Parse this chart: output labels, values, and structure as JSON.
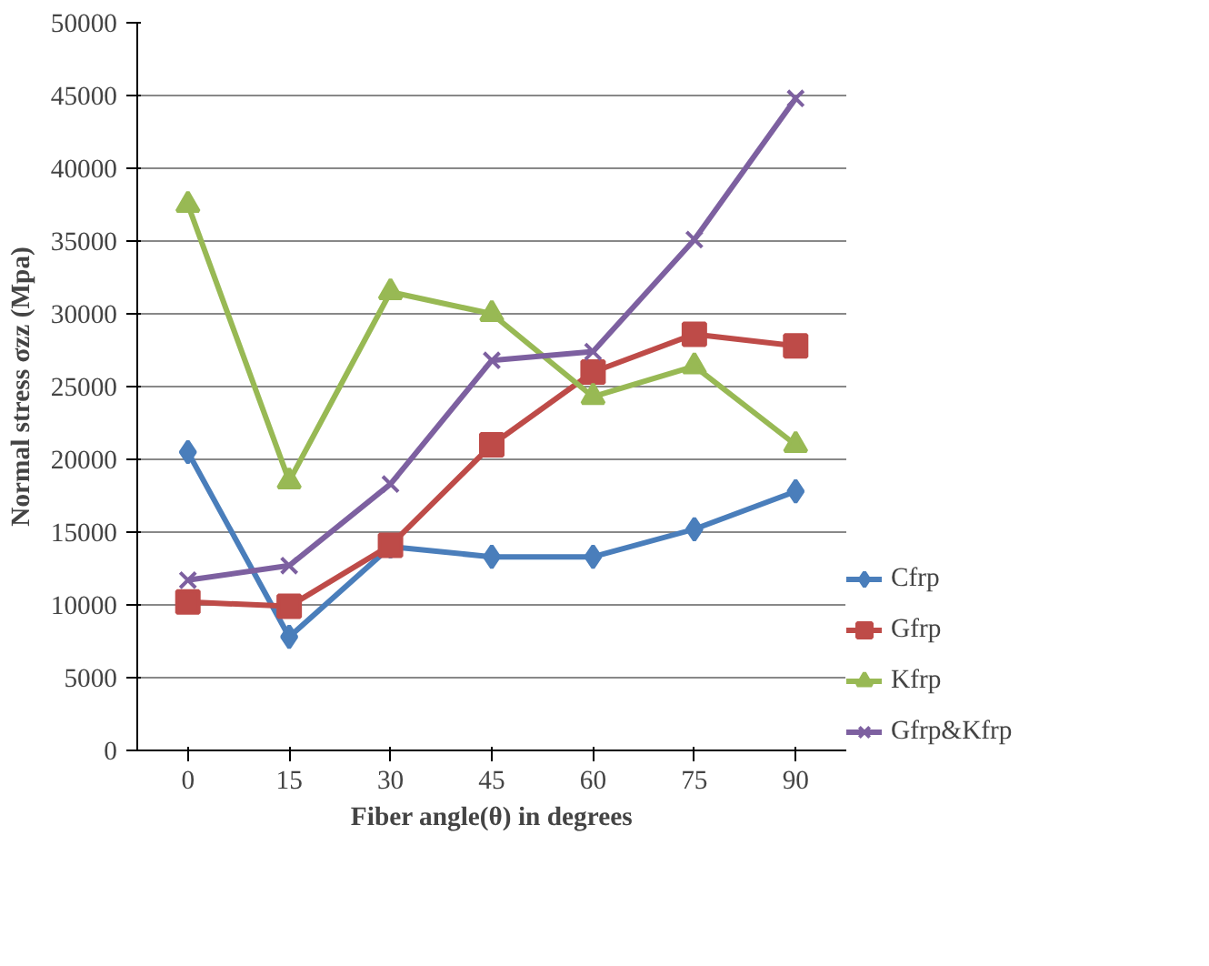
{
  "chart_data": {
    "type": "line",
    "xlabel": "Fiber angle(θ) in degrees",
    "ylabel": "Normal stress σzz (Mpa)",
    "categories": [
      "0",
      "15",
      "30",
      "45",
      "60",
      "75",
      "90"
    ],
    "ylim": [
      0,
      50000
    ],
    "yticks": [
      0,
      5000,
      10000,
      15000,
      20000,
      25000,
      30000,
      35000,
      40000,
      45000,
      50000
    ],
    "grid": "y",
    "legend": "right",
    "series": [
      {
        "name": "Cfrp",
        "color": "#4a7ebb",
        "marker": "diamond",
        "values": [
          20500,
          7800,
          14000,
          13300,
          13300,
          15200,
          17800
        ]
      },
      {
        "name": "Gfrp",
        "color": "#be4b48",
        "marker": "square",
        "values": [
          10200,
          9900,
          14100,
          21000,
          26000,
          28600,
          27800
        ]
      },
      {
        "name": "Kfrp",
        "color": "#98b954",
        "marker": "triangle",
        "values": [
          37500,
          18500,
          31500,
          30000,
          24300,
          26400,
          21000
        ]
      },
      {
        "name": "Gfrp&Kfrp",
        "color": "#7d60a0",
        "marker": "cross",
        "values": [
          11700,
          12700,
          18300,
          26800,
          27400,
          35100,
          44800
        ]
      }
    ]
  }
}
